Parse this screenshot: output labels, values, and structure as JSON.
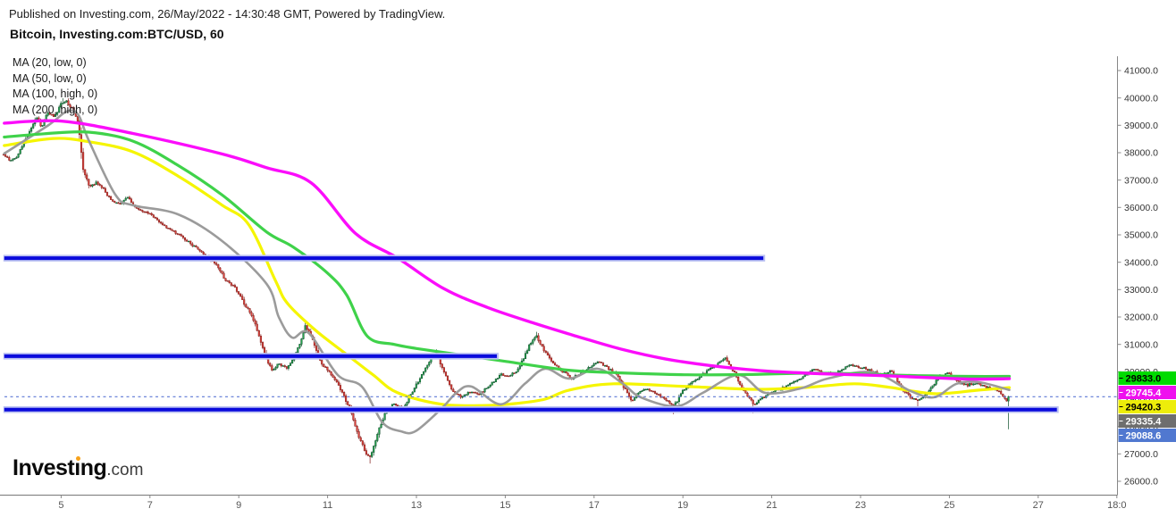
{
  "header": {
    "published_line": "Published on Investing.com, 26/May/2022 - 14:30:48 GMT, Powered by TradingView.",
    "title_line": "Bitcoin, Investing.com:BTC/USD, 60"
  },
  "indicator_labels": [
    "MA (20, low, 0)",
    "MA (50, low, 0)",
    "MA (100, high, 0)",
    "MA (200, high, 0)"
  ],
  "logo": {
    "brand": "Investing",
    "suffix": ".com",
    "dot_color": "#f7a21b"
  },
  "colors": {
    "background": "#ffffff",
    "candle_up_fill": "#25a750",
    "candle_up_border": "#0e4f2a",
    "candle_down_fill": "#e2443d",
    "candle_down_border": "#801b18",
    "ma20": "#9b9b9b",
    "ma50": "#f5f500",
    "ma100": "#3fd24a",
    "ma200": "#fb0dfb",
    "hline": "#0a0adc",
    "hline_halo": "#b9bff2",
    "dashed_price_line": "#5c78d6",
    "axis_line": "#888888",
    "axis_text": "#444444"
  },
  "chart_data": {
    "type": "candlestick",
    "title": "Bitcoin, Investing.com:BTC/USD, 60",
    "symbol": "BTC/USD",
    "interval_minutes": 60,
    "y_axis": {
      "min": 26000,
      "max": 41000,
      "step": 1000,
      "tick_labels": [
        "41000.0",
        "40000.0",
        "39000.0",
        "38000.0",
        "37000.0",
        "36000.0",
        "35000.0",
        "34000.0",
        "33000.0",
        "32000.0",
        "31000.0",
        "30000.0",
        "29000.0",
        "28000.0",
        "27000.0",
        "26000.0"
      ]
    },
    "x_axis": {
      "unit": "day of May 2022",
      "ticks": [
        {
          "day": 5,
          "label": "5"
        },
        {
          "day": 7,
          "label": "7"
        },
        {
          "day": 9,
          "label": "9"
        },
        {
          "day": 11,
          "label": "11"
        },
        {
          "day": 13,
          "label": "13"
        },
        {
          "day": 15,
          "label": "15"
        },
        {
          "day": 17,
          "label": "17"
        },
        {
          "day": 19,
          "label": "19"
        },
        {
          "day": 21,
          "label": "21"
        },
        {
          "day": 23,
          "label": "23"
        },
        {
          "day": 25,
          "label": "25"
        },
        {
          "day": 27,
          "label": "27"
        },
        {
          "day": 28.77,
          "label": "18:0"
        }
      ]
    },
    "price_path": [
      [
        3.7,
        37950
      ],
      [
        3.85,
        37700
      ],
      [
        4.0,
        37850
      ],
      [
        4.15,
        38350
      ],
      [
        4.3,
        38800
      ],
      [
        4.45,
        39300
      ],
      [
        4.55,
        38900
      ],
      [
        4.7,
        39500
      ],
      [
        4.85,
        39300
      ],
      [
        5.0,
        39800
      ],
      [
        5.1,
        39900
      ],
      [
        5.25,
        39600
      ],
      [
        5.38,
        39150
      ],
      [
        5.5,
        37300
      ],
      [
        5.65,
        36750
      ],
      [
        5.8,
        36900
      ],
      [
        5.95,
        36700
      ],
      [
        6.1,
        36300
      ],
      [
        6.3,
        36100
      ],
      [
        6.5,
        36350
      ],
      [
        6.7,
        35950
      ],
      [
        7.0,
        35750
      ],
      [
        7.3,
        35350
      ],
      [
        7.6,
        35050
      ],
      [
        7.9,
        34700
      ],
      [
        8.1,
        34450
      ],
      [
        8.3,
        34200
      ],
      [
        8.5,
        33900
      ],
      [
        8.7,
        33350
      ],
      [
        8.9,
        33100
      ],
      [
        9.1,
        32550
      ],
      [
        9.3,
        32050
      ],
      [
        9.45,
        31350
      ],
      [
        9.6,
        30550
      ],
      [
        9.75,
        30050
      ],
      [
        9.9,
        30300
      ],
      [
        10.1,
        30150
      ],
      [
        10.35,
        30900
      ],
      [
        10.5,
        31700
      ],
      [
        10.65,
        31250
      ],
      [
        10.8,
        30450
      ],
      [
        11.0,
        30050
      ],
      [
        11.2,
        29650
      ],
      [
        11.35,
        29150
      ],
      [
        11.5,
        28650
      ],
      [
        11.7,
        27650
      ],
      [
        11.85,
        27050
      ],
      [
        11.97,
        26850
      ],
      [
        12.1,
        27650
      ],
      [
        12.3,
        28500
      ],
      [
        12.5,
        28850
      ],
      [
        12.7,
        28650
      ],
      [
        12.9,
        29250
      ],
      [
        13.1,
        29850
      ],
      [
        13.3,
        30400
      ],
      [
        13.45,
        30700
      ],
      [
        13.6,
        30050
      ],
      [
        13.8,
        29350
      ],
      [
        14.0,
        29050
      ],
      [
        14.2,
        29300
      ],
      [
        14.4,
        29150
      ],
      [
        14.6,
        29450
      ],
      [
        14.9,
        29900
      ],
      [
        15.1,
        29850
      ],
      [
        15.3,
        30100
      ],
      [
        15.55,
        31000
      ],
      [
        15.7,
        31300
      ],
      [
        15.9,
        30700
      ],
      [
        16.1,
        30250
      ],
      [
        16.3,
        30000
      ],
      [
        16.5,
        29750
      ],
      [
        16.7,
        29950
      ],
      [
        16.9,
        30150
      ],
      [
        17.1,
        30350
      ],
      [
        17.3,
        30150
      ],
      [
        17.5,
        29900
      ],
      [
        17.7,
        29350
      ],
      [
        17.85,
        28950
      ],
      [
        18.0,
        29250
      ],
      [
        18.2,
        29400
      ],
      [
        18.4,
        29180
      ],
      [
        18.6,
        29000
      ],
      [
        18.8,
        28750
      ],
      [
        19.0,
        29300
      ],
      [
        19.2,
        29600
      ],
      [
        19.45,
        29900
      ],
      [
        19.7,
        30200
      ],
      [
        19.95,
        30480
      ],
      [
        20.15,
        30000
      ],
      [
        20.35,
        29350
      ],
      [
        20.6,
        28820
      ],
      [
        20.85,
        29120
      ],
      [
        21.1,
        29320
      ],
      [
        21.4,
        29520
      ],
      [
        21.7,
        29820
      ],
      [
        21.95,
        30080
      ],
      [
        22.2,
        29920
      ],
      [
        22.5,
        30020
      ],
      [
        22.8,
        30250
      ],
      [
        23.1,
        30120
      ],
      [
        23.4,
        29920
      ],
      [
        23.7,
        30020
      ],
      [
        23.92,
        29420
      ],
      [
        24.1,
        29120
      ],
      [
        24.3,
        28920
      ],
      [
        24.55,
        29320
      ],
      [
        24.8,
        29880
      ],
      [
        25.0,
        29930
      ],
      [
        25.2,
        29620
      ],
      [
        25.4,
        29520
      ],
      [
        25.6,
        29560
      ],
      [
        25.8,
        29470
      ],
      [
        26.0,
        29380
      ],
      [
        26.15,
        29250
      ],
      [
        26.28,
        28900
      ],
      [
        26.33,
        29088.6
      ]
    ],
    "wick_extremes": [
      {
        "day": 5.05,
        "high": 39990
      },
      {
        "day": 11.97,
        "low": 26650
      },
      {
        "day": 13.45,
        "high": 30820
      },
      {
        "day": 15.7,
        "high": 31460
      },
      {
        "day": 18.8,
        "low": 28450
      },
      {
        "day": 20.6,
        "low": 28480
      },
      {
        "day": 24.3,
        "low": 28560
      },
      {
        "day": 26.33,
        "low": 27900
      }
    ],
    "moving_averages": [
      {
        "name": "MA (20, low, 0)",
        "color_key": "ma20",
        "last_value": 29335.4,
        "points": [
          [
            3.72,
            37970
          ],
          [
            4.72,
            39010
          ],
          [
            5.12,
            39500
          ],
          [
            5.38,
            39400
          ],
          [
            5.62,
            38460
          ],
          [
            6.22,
            36470
          ],
          [
            6.62,
            36080
          ],
          [
            7.63,
            35750
          ],
          [
            8.63,
            34770
          ],
          [
            9.63,
            33200
          ],
          [
            9.9,
            32000
          ],
          [
            10.2,
            31250
          ],
          [
            10.57,
            31420
          ],
          [
            11.23,
            29880
          ],
          [
            11.77,
            29460
          ],
          [
            12.23,
            28160
          ],
          [
            12.64,
            27830
          ],
          [
            12.98,
            27830
          ],
          [
            13.58,
            28680
          ],
          [
            13.9,
            29230
          ],
          [
            14.24,
            29460
          ],
          [
            14.9,
            28810
          ],
          [
            15.44,
            29560
          ],
          [
            15.9,
            30110
          ],
          [
            16.44,
            29750
          ],
          [
            17.08,
            30110
          ],
          [
            17.65,
            29560
          ],
          [
            18.05,
            29070
          ],
          [
            18.85,
            28740
          ],
          [
            19.45,
            29230
          ],
          [
            20.25,
            29880
          ],
          [
            20.85,
            29230
          ],
          [
            21.65,
            29390
          ],
          [
            22.26,
            29750
          ],
          [
            23.26,
            29980
          ],
          [
            24.12,
            29300
          ],
          [
            24.66,
            29070
          ],
          [
            25.16,
            29560
          ],
          [
            25.66,
            29620
          ],
          [
            26.35,
            29335.4
          ]
        ]
      },
      {
        "name": "MA (50, low, 0)",
        "color_key": "ma50",
        "last_value": 29420.3,
        "points": [
          [
            3.72,
            38260
          ],
          [
            4.82,
            38520
          ],
          [
            5.62,
            38400
          ],
          [
            6.62,
            38030
          ],
          [
            7.63,
            37150
          ],
          [
            8.63,
            36080
          ],
          [
            9.23,
            35360
          ],
          [
            9.83,
            33310
          ],
          [
            10.1,
            32490
          ],
          [
            10.73,
            31510
          ],
          [
            11.43,
            30630
          ],
          [
            12.03,
            29880
          ],
          [
            12.58,
            29230
          ],
          [
            13.58,
            28810
          ],
          [
            14.58,
            28770
          ],
          [
            15.24,
            28840
          ],
          [
            15.9,
            29000
          ],
          [
            16.44,
            29330
          ],
          [
            17.44,
            29560
          ],
          [
            19.1,
            29460
          ],
          [
            20.65,
            29360
          ],
          [
            21.8,
            29430
          ],
          [
            22.86,
            29560
          ],
          [
            23.66,
            29430
          ],
          [
            24.66,
            29200
          ],
          [
            25.66,
            29330
          ],
          [
            26.35,
            29420.3
          ]
        ]
      },
      {
        "name": "MA (100, high, 0)",
        "color_key": "ma100",
        "last_value": 29833.0,
        "points": [
          [
            3.72,
            38570
          ],
          [
            4.62,
            38690
          ],
          [
            5.62,
            38750
          ],
          [
            6.62,
            38420
          ],
          [
            7.63,
            37540
          ],
          [
            8.63,
            36450
          ],
          [
            9.63,
            35100
          ],
          [
            10.23,
            34550
          ],
          [
            11.0,
            33600
          ],
          [
            11.43,
            32800
          ],
          [
            11.9,
            31290
          ],
          [
            12.5,
            31000
          ],
          [
            13.0,
            30850
          ],
          [
            13.9,
            30640
          ],
          [
            15.0,
            30380
          ],
          [
            16.4,
            30060
          ],
          [
            17.6,
            29960
          ],
          [
            19.1,
            29890
          ],
          [
            20.5,
            29900
          ],
          [
            21.8,
            29950
          ],
          [
            23.0,
            29920
          ],
          [
            23.7,
            29880
          ],
          [
            24.6,
            29850
          ],
          [
            25.5,
            29830
          ],
          [
            26.35,
            29833
          ]
        ]
      },
      {
        "name": "MA (200, high, 0)",
        "color_key": "ma200",
        "last_value": 29745.4,
        "points": [
          [
            3.72,
            39080
          ],
          [
            5.02,
            39150
          ],
          [
            6.62,
            38700
          ],
          [
            8.63,
            37950
          ],
          [
            9.63,
            37450
          ],
          [
            10.63,
            36900
          ],
          [
            11.63,
            35050
          ],
          [
            12.58,
            34150
          ],
          [
            13.6,
            33050
          ],
          [
            14.6,
            32350
          ],
          [
            15.6,
            31800
          ],
          [
            16.6,
            31300
          ],
          [
            17.6,
            30830
          ],
          [
            18.6,
            30470
          ],
          [
            19.6,
            30230
          ],
          [
            20.85,
            30030
          ],
          [
            22.1,
            29930
          ],
          [
            23.3,
            29870
          ],
          [
            24.5,
            29790
          ],
          [
            25.5,
            29730
          ],
          [
            26.35,
            29745.4
          ]
        ]
      }
    ],
    "horizontal_lines": [
      {
        "price": 34150,
        "day_start": 3.72,
        "day_end": 20.81
      },
      {
        "price": 30570,
        "day_start": 3.72,
        "day_end": 14.81
      },
      {
        "price": 28620,
        "day_start": 3.72,
        "day_end": 27.42
      }
    ],
    "current_price_line": {
      "price": 29088.6,
      "style": "dashed"
    },
    "price_tags": [
      {
        "value": "29833.0",
        "bg": "#00db00",
        "fg": "#000000",
        "series": "MA (100, high, 0)"
      },
      {
        "value": "29745.4",
        "bg": "#ef0fef",
        "fg": "#ffffff",
        "series": "MA (200, high, 0)"
      },
      {
        "value": "29420.3",
        "bg": "#eded0a",
        "fg": "#000000",
        "series": "MA (50, low, 0)"
      },
      {
        "value": "29335.4",
        "bg": "#6e6e6e",
        "fg": "#ffffff",
        "series": "MA (20, low, 0)"
      },
      {
        "value": "29088.6",
        "bg": "#5078d0",
        "fg": "#ffffff",
        "series": "last price"
      }
    ]
  }
}
